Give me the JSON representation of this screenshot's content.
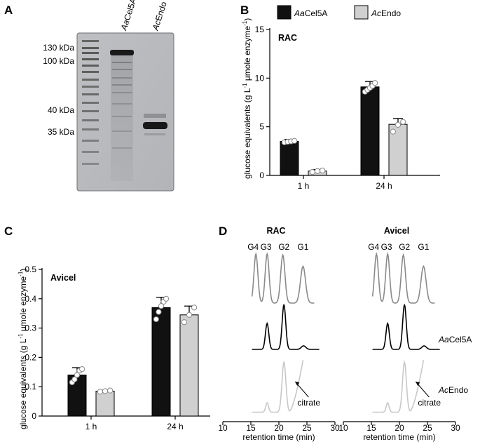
{
  "panels": {
    "A": {
      "letter": "A",
      "lane_labels": [
        {
          "prefix": "Aa",
          "suffix": "Cel5A"
        },
        {
          "prefix": "Ac",
          "suffix": "Endo"
        }
      ],
      "markers": [
        "130 kDa",
        "100 kDa",
        "40 kDa",
        "35 kDa"
      ]
    },
    "B": {
      "letter": "B"
    },
    "C": {
      "letter": "C"
    },
    "D": {
      "letter": "D",
      "subtitles": [
        "RAC",
        "Avicel"
      ],
      "peak_labels": [
        "G4",
        "G3",
        "G2",
        "G1"
      ],
      "trace_labels": [
        {
          "prefix": "Aa",
          "suffix": "Cel5A"
        },
        {
          "prefix": "Ac",
          "suffix": "Endo"
        }
      ],
      "citrate_label": "citrate",
      "xlabel": "retention time (min)",
      "xticks": [
        "10",
        "15",
        "20",
        "25",
        "30"
      ],
      "xlim": [
        10,
        30
      ],
      "colors": {
        "standard": "#8a8a8a",
        "aacel5a": "#000000",
        "acendo": "#c8c8c8"
      }
    }
  },
  "legend": [
    {
      "prefix": "Aa",
      "suffix": "Cel5A",
      "color": "#111111"
    },
    {
      "prefix": "Ac",
      "suffix": "Endo",
      "color": "#d0d0d0"
    }
  ],
  "ylabel": {
    "main": "glucose equivalents (g L",
    "sup1": "-1",
    "mid": " μmole enzyme",
    "sup2": "-1",
    "end": ")"
  },
  "chart_data": [
    {
      "type": "bar",
      "panel": "B",
      "subtitle": "RAC",
      "categories": [
        "1 h",
        "24 h"
      ],
      "series": [
        {
          "name": "AaCel5A",
          "values": [
            3.5,
            9.1
          ],
          "errors": [
            0.2,
            0.55
          ],
          "points": [
            [
              3.4,
              3.45,
              3.5,
              3.55
            ],
            [
              8.6,
              8.8,
              9.0,
              9.2,
              9.5
            ]
          ],
          "color": "#111111"
        },
        {
          "name": "AcEndo",
          "values": [
            0.45,
            5.25
          ],
          "errors": [
            0.15,
            0.6
          ],
          "points": [
            [
              0.35,
              0.45,
              0.5
            ],
            [
              4.5,
              5.2,
              5.5
            ]
          ],
          "color": "#d0d0d0"
        }
      ],
      "ylim": [
        0,
        15
      ],
      "yticks": [
        0,
        5,
        10,
        15
      ]
    },
    {
      "type": "bar",
      "panel": "C",
      "subtitle": "Avicel",
      "categories": [
        "1 h",
        "24 h"
      ],
      "series": [
        {
          "name": "AaCel5A",
          "values": [
            0.14,
            0.37
          ],
          "errors": [
            0.025,
            0.035
          ],
          "points": [
            [
              0.115,
              0.125,
              0.14,
              0.155,
              0.16
            ],
            [
              0.33,
              0.355,
              0.375,
              0.39,
              0.4
            ]
          ],
          "color": "#111111"
        },
        {
          "name": "AcEndo",
          "values": [
            0.085,
            0.345
          ],
          "errors": [
            0.003,
            0.03
          ],
          "points": [
            [
              0.083,
              0.085,
              0.087
            ],
            [
              0.32,
              0.345,
              0.37
            ]
          ],
          "color": "#d0d0d0"
        }
      ],
      "ylim": [
        0,
        0.5
      ],
      "yticks": [
        0,
        0.1,
        0.2,
        0.3,
        0.4,
        0.5
      ]
    }
  ]
}
